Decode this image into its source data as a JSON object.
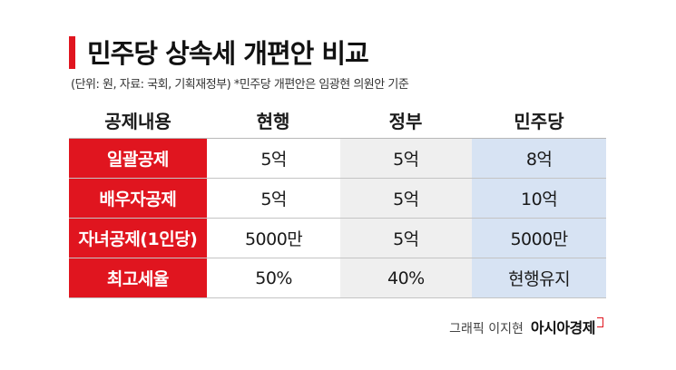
{
  "title": "민주당 상속세 개편안 비교",
  "subtitle": "(단위: 원, 자료: 국회, 기획재정부)  *민주당 개편안은 임광현 의원안 기준",
  "table": {
    "headers": [
      "공제내용",
      "현행",
      "정부",
      "민주당"
    ],
    "rows": [
      {
        "label": "일괄공제",
        "current": "5억",
        "government": "5억",
        "democratic": "8억"
      },
      {
        "label": "배우자공제",
        "current": "5억",
        "government": "5억",
        "democratic": "10억"
      },
      {
        "label": "자녀공제(1인당)",
        "current": "5000만",
        "government": "5억",
        "democratic": "5000만"
      },
      {
        "label": "최고세율",
        "current": "50%",
        "government": "40%",
        "democratic": "현행유지"
      }
    ]
  },
  "credit": {
    "author": "그래픽 이지현",
    "brand": "아시아경제"
  },
  "colors": {
    "accent_red": "#e0151f",
    "government_col": "#efefef",
    "democratic_col": "#d7e3f3"
  }
}
